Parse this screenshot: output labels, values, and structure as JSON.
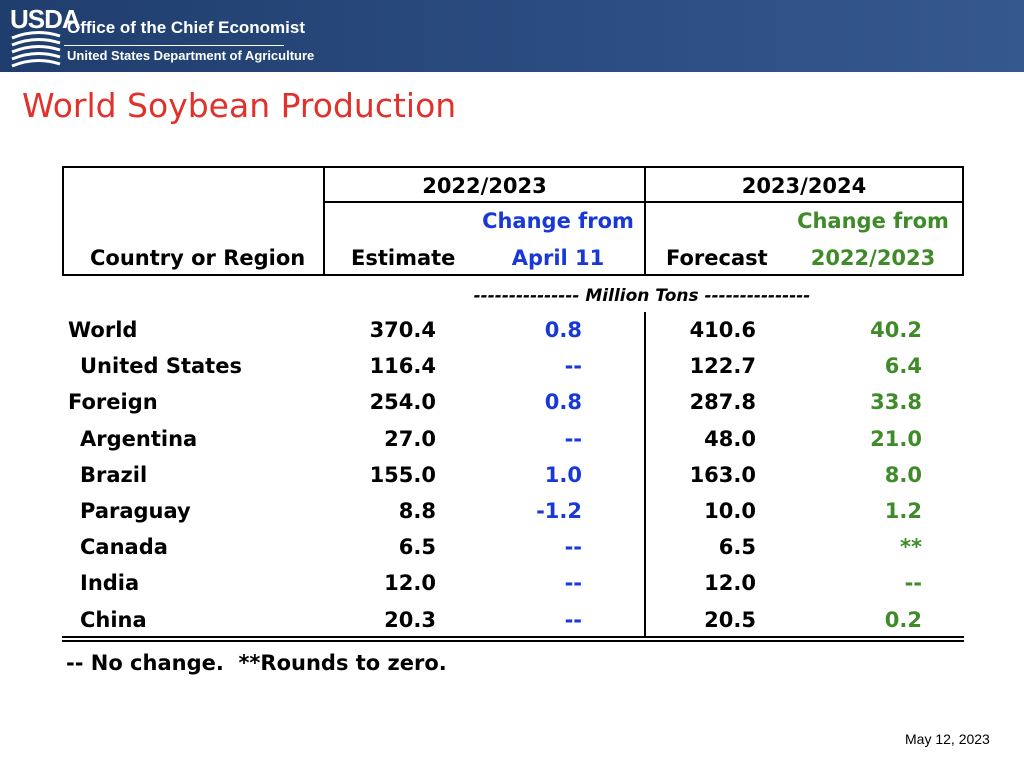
{
  "header": {
    "logo_text": "USDA",
    "org_name": "Office of the Chief Economist",
    "department": "United States Department of Agriculture"
  },
  "title": "World Soybean Production",
  "table": {
    "row_header": "Country or Region",
    "period1": {
      "label": "2022/2023",
      "col_a": "Estimate",
      "col_b_line1": "Change from",
      "col_b_line2": "April 11"
    },
    "period2": {
      "label": "2023/2024",
      "col_a": "Forecast",
      "col_b_line1": "Change from",
      "col_b_line2": "2022/2023"
    },
    "units": "--------------- Million Tons ---------------",
    "rows": [
      {
        "name": "World",
        "estimate": "370.4",
        "change_april": "0.8",
        "forecast": "410.6",
        "change_year": "40.2",
        "indent": false
      },
      {
        "name": "United States",
        "estimate": "116.4",
        "change_april": "--",
        "forecast": "122.7",
        "change_year": "6.4",
        "indent": true
      },
      {
        "name": "Foreign",
        "estimate": "254.0",
        "change_april": "0.8",
        "forecast": "287.8",
        "change_year": "33.8",
        "indent": false
      },
      {
        "name": "Argentina",
        "estimate": "27.0",
        "change_april": "--",
        "forecast": "48.0",
        "change_year": "21.0",
        "indent": true
      },
      {
        "name": "Brazil",
        "estimate": "155.0",
        "change_april": "1.0",
        "forecast": "163.0",
        "change_year": "8.0",
        "indent": true
      },
      {
        "name": "Paraguay",
        "estimate": "8.8",
        "change_april": "-1.2",
        "forecast": "10.0",
        "change_year": "1.2",
        "indent": true
      },
      {
        "name": "Canada",
        "estimate": "6.5",
        "change_april": "--",
        "forecast": "6.5",
        "change_year": "**",
        "indent": true
      },
      {
        "name": "India",
        "estimate": "12.0",
        "change_april": "--",
        "forecast": "12.0",
        "change_year": "--",
        "indent": true
      },
      {
        "name": "China",
        "estimate": "20.3",
        "change_april": "--",
        "forecast": "20.5",
        "change_year": "0.2",
        "indent": true
      }
    ]
  },
  "footnote": "-- No change.  **Rounds to zero.",
  "date": "May 12, 2023",
  "colors": {
    "header_bg": "#2b4c80",
    "title": "#e0312b",
    "change_april": "#1838d8",
    "change_year": "#3f8b2a"
  }
}
